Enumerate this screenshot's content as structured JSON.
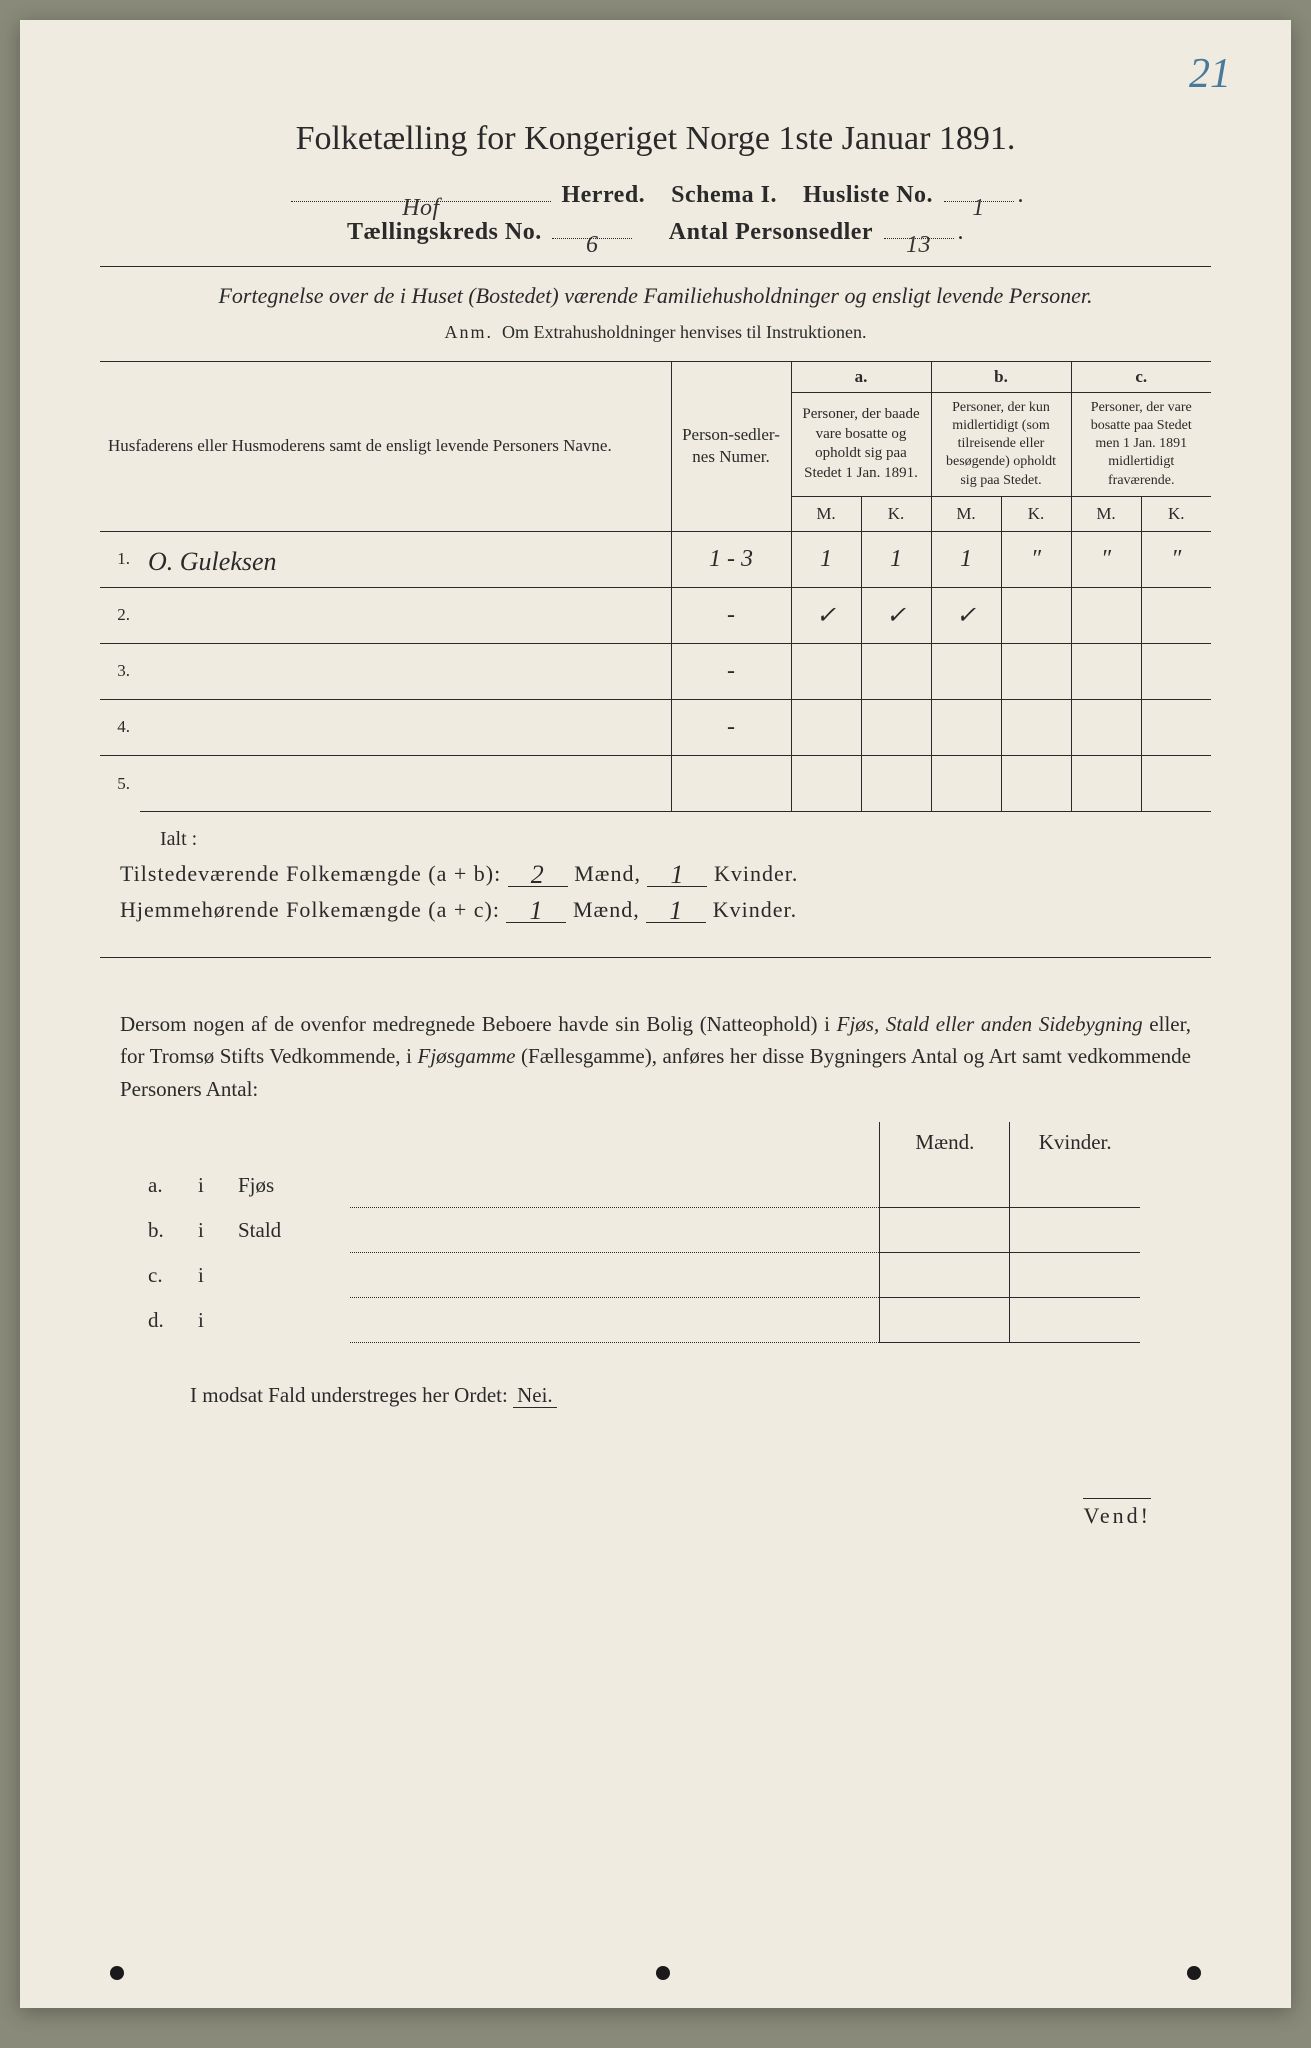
{
  "page_corner_number": "21",
  "title": "Folketælling for Kongeriget Norge 1ste Januar 1891.",
  "header": {
    "herred_value": "Hof",
    "herred_label": "Herred.",
    "schema_label": "Schema I.",
    "husliste_label": "Husliste No.",
    "husliste_value": "1",
    "kreds_label": "Tællingskreds No.",
    "kreds_value": "6",
    "antal_label": "Antal Personsedler",
    "antal_value": "13"
  },
  "subtitle": "Fortegnelse over de i Huset (Bostedet) værende Familiehusholdninger og ensligt levende Personer.",
  "anm_label": "Anm.",
  "anm_text": "Om Extrahusholdninger henvises til Instruktionen.",
  "table": {
    "head_names": "Husfaderens eller Husmoderens samt de ensligt levende Personers Navne.",
    "head_numer": "Person-sedler-nes Numer.",
    "group_a": "a.",
    "group_a_text": "Personer, der baade vare bosatte og opholdt sig paa Stedet 1 Jan. 1891.",
    "group_b": "b.",
    "group_b_text": "Personer, der kun midlertidigt (som tilreisende eller besøgende) opholdt sig paa Stedet.",
    "group_c": "c.",
    "group_c_text": "Personer, der vare bosatte paa Stedet men 1 Jan. 1891 midlertidigt fraværende.",
    "mk_m": "M.",
    "mk_k": "K.",
    "rows": [
      {
        "num": "1.",
        "name": "O. Guleksen",
        "numer": "1 - 3",
        "a_m": "1",
        "a_k": "1",
        "b_m": "1",
        "b_k": "″",
        "c_m": "″",
        "c_k": "″"
      },
      {
        "num": "2.",
        "name": "",
        "numer": "-",
        "a_m": "✓",
        "a_k": "✓",
        "b_m": "✓",
        "b_k": "",
        "c_m": "",
        "c_k": ""
      },
      {
        "num": "3.",
        "name": "",
        "numer": "-",
        "a_m": "",
        "a_k": "",
        "b_m": "",
        "b_k": "",
        "c_m": "",
        "c_k": ""
      },
      {
        "num": "4.",
        "name": "",
        "numer": "-",
        "a_m": "",
        "a_k": "",
        "b_m": "",
        "b_k": "",
        "c_m": "",
        "c_k": ""
      },
      {
        "num": "5.",
        "name": "",
        "numer": "",
        "a_m": "",
        "a_k": "",
        "b_m": "",
        "b_k": "",
        "c_m": "",
        "c_k": ""
      }
    ]
  },
  "ialt_label": "Ialt :",
  "sum": {
    "line1_label_a": "Tilstedeværende Folkemængde (a + b):",
    "line1_m": "2",
    "line1_k": "1",
    "line2_label_a": "Hjemmehørende Folkemængde (a + c):",
    "line2_m": "1",
    "line2_k": "1",
    "maend": "Mænd,",
    "kvinder": "Kvinder."
  },
  "para": "Dersom nogen af de ovenfor medregnede Beboere havde sin Bolig (Natteophold) i Fjøs, Stald eller anden Sidebygning eller, for Tromsø Stifts Vedkommende, i Fjøsgamme (Fællesgamme), anføres her disse Bygningers Antal og Art samt vedkommende Personers Antal:",
  "bygn": {
    "head_m": "Mænd.",
    "head_k": "Kvinder.",
    "rows": [
      {
        "a": "a.",
        "i": "i",
        "typ": "Fjøs"
      },
      {
        "a": "b.",
        "i": "i",
        "typ": "Stald"
      },
      {
        "a": "c.",
        "i": "i",
        "typ": ""
      },
      {
        "a": "d.",
        "i": "i",
        "typ": ""
      }
    ]
  },
  "nei_line_a": "I modsat Fald understreges her Ordet:",
  "nei_word": "Nei.",
  "vend": "Vend!",
  "colors": {
    "paper": "#f0ebe0",
    "ink": "#2a2a2a",
    "pencil_blue": "#4a7a9a"
  }
}
